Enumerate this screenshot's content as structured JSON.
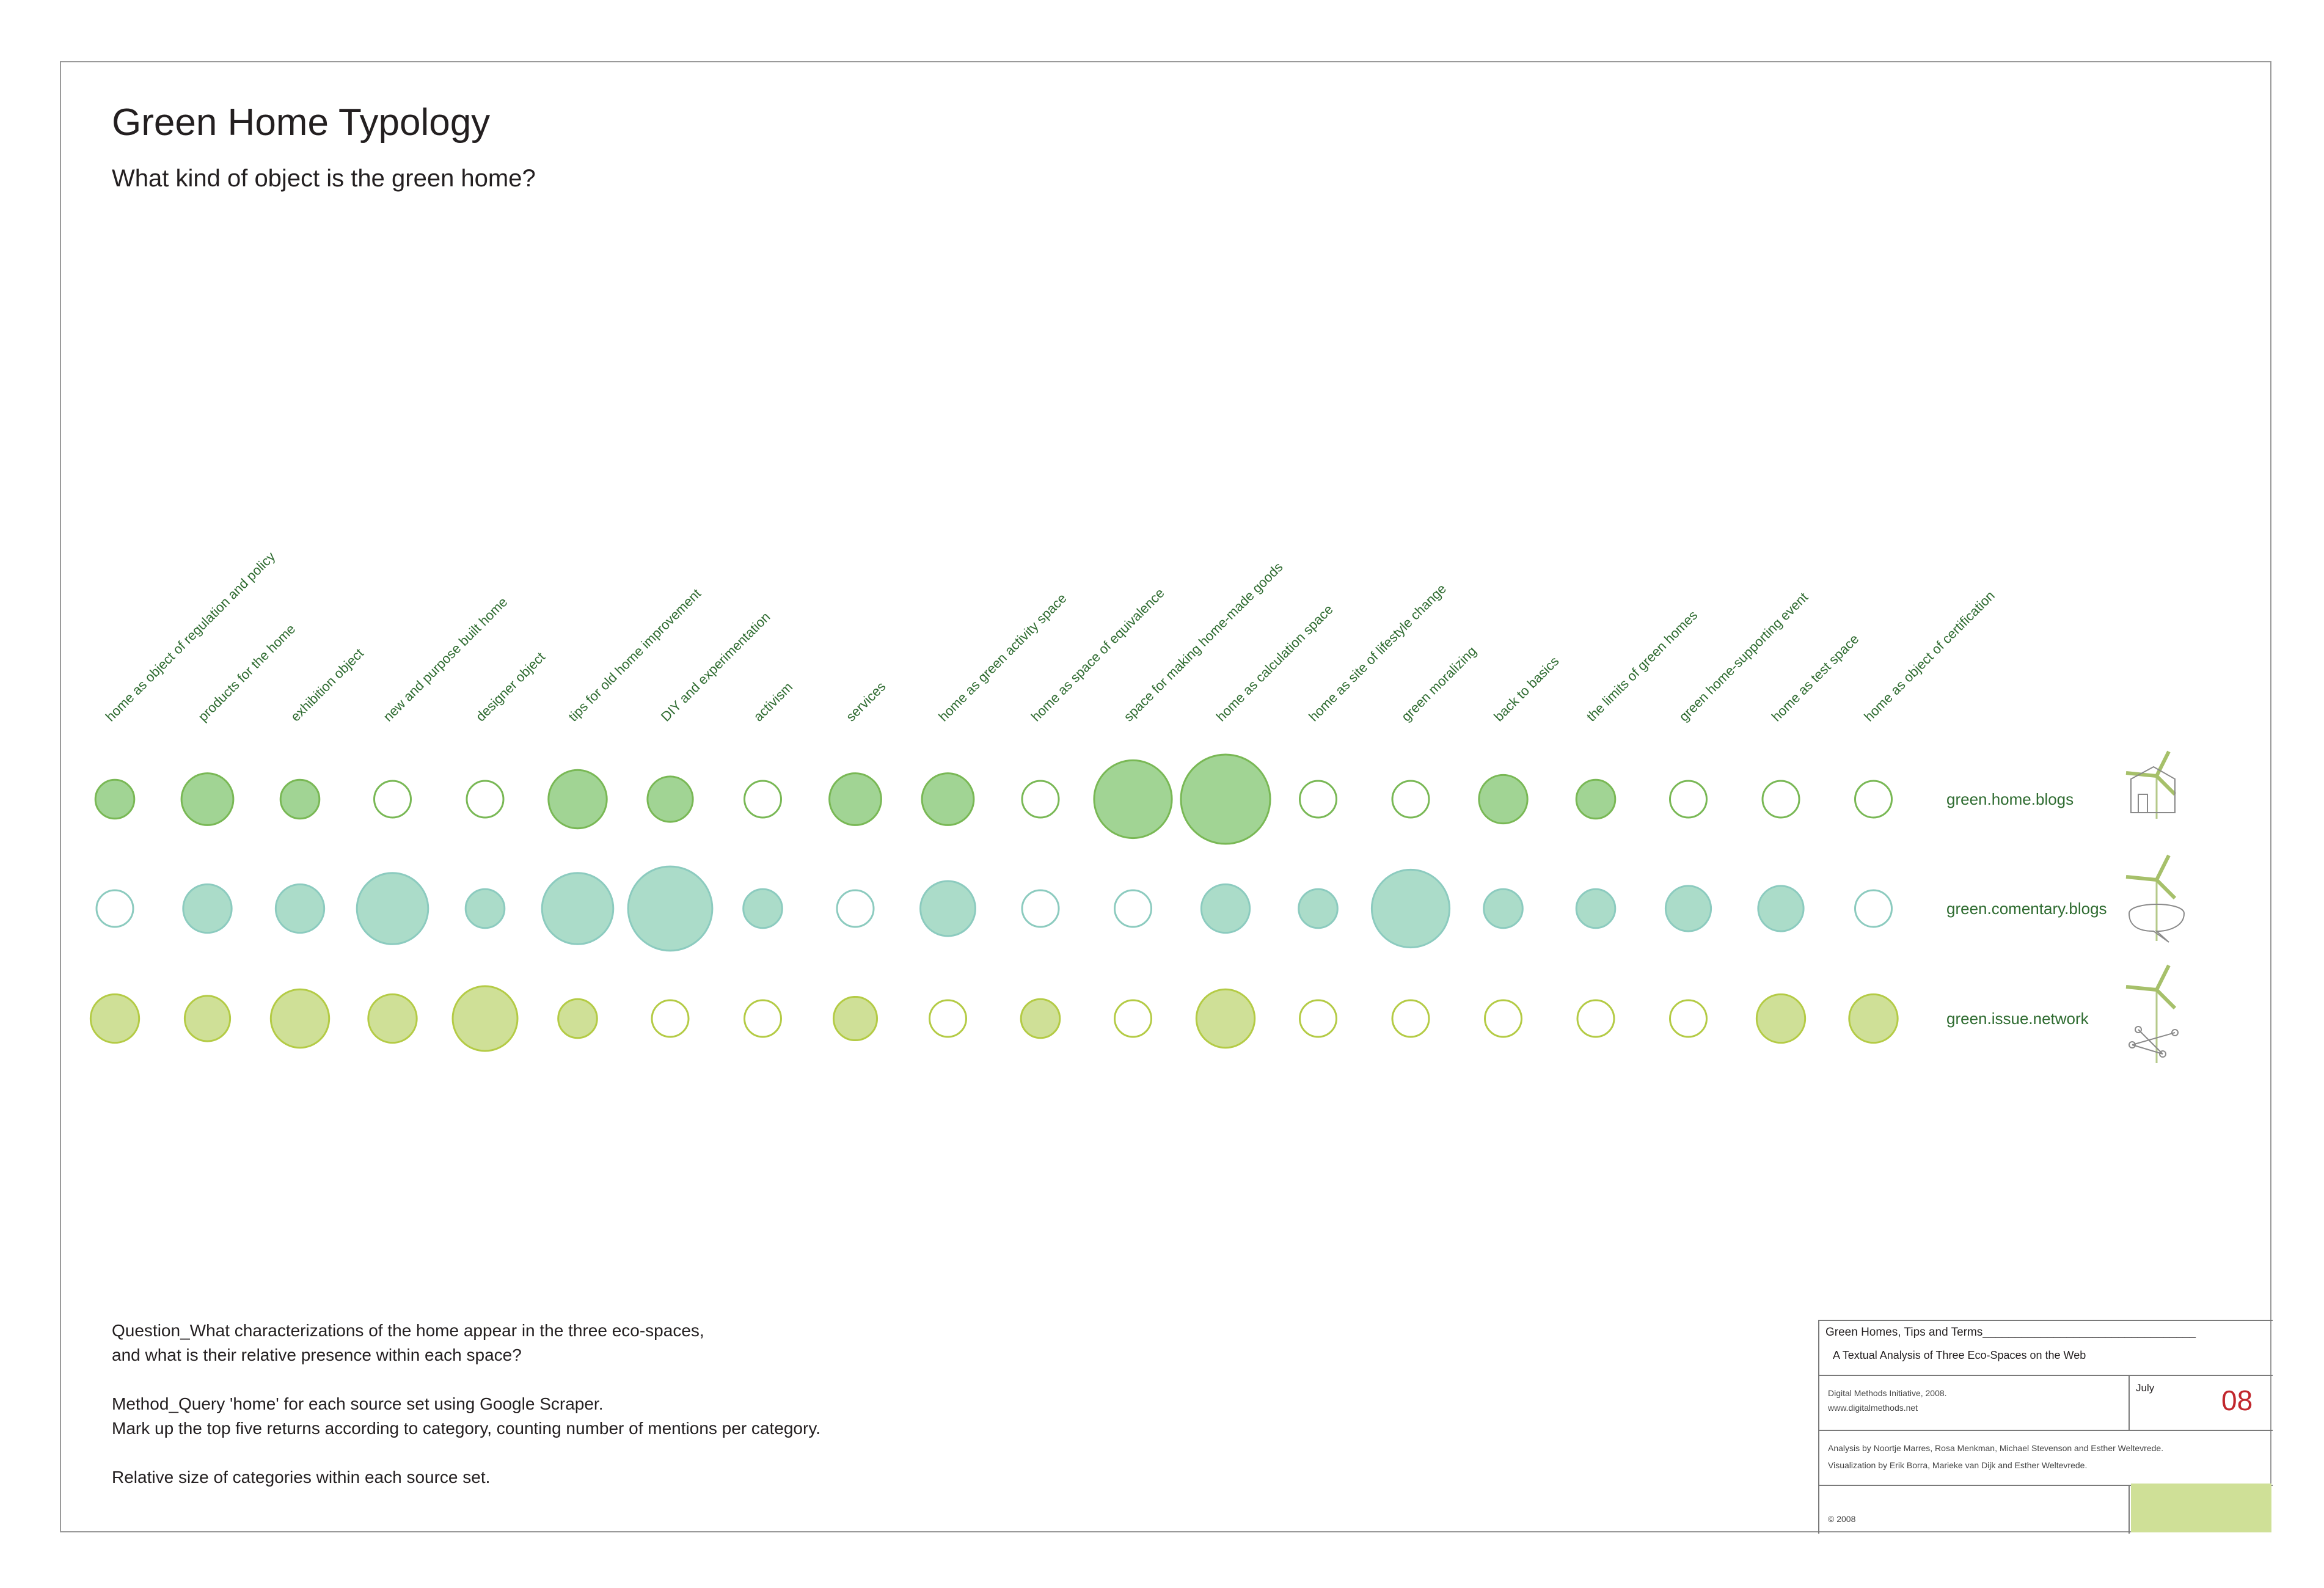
{
  "header": {
    "title": "Green Home Typology",
    "subtitle": "What kind of object is the green home?"
  },
  "chart_data": {
    "type": "bubble-matrix",
    "title": "Green Home Typology",
    "subtitle": "What kind of object is the green home?",
    "categories": [
      "home as object of regulation and policy",
      "products for the home",
      "exhibition object",
      "new and purpose built home",
      "designer object",
      "tips for old home improvement",
      "DIY and experimentation",
      "activism",
      "services",
      "home as green activity space",
      "home as space of equivalence",
      "space for making home-made goods",
      "home as calculation space",
      "home as site of lifestyle change",
      "green moralizing",
      "back to basics",
      "the limits of green homes",
      "green home-supporting event",
      "home as test space",
      "home as object of certification"
    ],
    "value_note": "relative size (bubble area) within each source set; 0 = empty outline circle",
    "series": [
      {
        "name": "green.home.blogs",
        "fill": "#a1d494",
        "stroke": "#79b855",
        "empty_stroke": "#79b855",
        "values": [
          36,
          64,
          36,
          0,
          0,
          81,
          49,
          0,
          64,
          64,
          0,
          144,
          190,
          0,
          0,
          56,
          36,
          0,
          0,
          0
        ]
      },
      {
        "name": "green.comentary.blogs",
        "fill": "#abdcc9",
        "stroke": "#8ccbbf",
        "empty_stroke": "#8ccbbf",
        "values": [
          0,
          56,
          56,
          121,
          36,
          121,
          169,
          36,
          0,
          72,
          0,
          0,
          56,
          36,
          144,
          36,
          36,
          49,
          49,
          0
        ]
      },
      {
        "name": "green.issue.network",
        "fill": "#cfe097",
        "stroke": "#b4cb45",
        "empty_stroke": "#b4cb45",
        "values": [
          56,
          49,
          81,
          56,
          100,
          36,
          0,
          0,
          45,
          0,
          36,
          0,
          81,
          0,
          0,
          0,
          0,
          0,
          56,
          56
        ]
      }
    ]
  },
  "icons": {
    "blogs": "windmill-house-icon",
    "comentary": "windmill-speech-bubble-icon",
    "network": "windmill-network-icon"
  },
  "notes": {
    "question_1": "Question_What characterizations of the home appear in the three eco-spaces,",
    "question_2": "and what is their relative presence within each space?",
    "method_1": "Method_Query 'home' for each source set using Google Scraper.",
    "method_2": "Mark up the top five returns according to category, counting number of mentions per category.",
    "relative": "Relative size of categories within each source set."
  },
  "info_box": {
    "title": "Green Homes, Tips and Terms_________________________________",
    "subtitle": "A Textual Analysis of Three Eco-Spaces on the Web",
    "org": "Digital Methods Initiative, 2008.",
    "url": "www.digitalmethods.net",
    "month": "July",
    "day": "08",
    "analysis": "Analysis by Noortje Marres, Rosa Menkman, Michael Stevenson and Esther Weltevrede.",
    "visualization": "Visualization by Erik Borra, Marieke van Dijk and Esther Weltevrede.",
    "copyright": "© 2008",
    "swatch_color": "#cfe097"
  }
}
